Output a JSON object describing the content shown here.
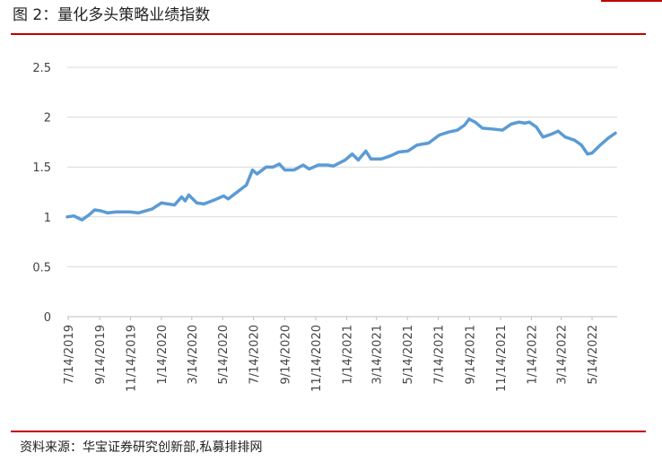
{
  "chart_data": {
    "type": "line",
    "title": "图 2：量化多头策略业绩指数",
    "source": "资料来源：华宝证券研究创新部,私募排排网",
    "x": [
      "2019-07-12",
      "2019-07-25",
      "2019-08-10",
      "2019-08-24",
      "2019-09-04",
      "2019-09-17",
      "2019-09-29",
      "2019-10-17",
      "2019-11-13",
      "2019-11-30",
      "2019-12-27",
      "2020-01-14",
      "2020-02-09",
      "2020-02-23",
      "2020-03-01",
      "2020-03-08",
      "2020-03-24",
      "2020-04-07",
      "2020-04-28",
      "2020-05-16",
      "2020-05-25",
      "2020-06-12",
      "2020-06-30",
      "2020-07-12",
      "2020-07-21",
      "2020-08-08",
      "2020-08-22",
      "2020-09-03",
      "2020-09-14",
      "2020-10-02",
      "2020-10-20",
      "2020-11-01",
      "2020-11-19",
      "2020-12-07",
      "2020-12-19",
      "2021-01-11",
      "2021-01-25",
      "2021-02-06",
      "2021-02-21",
      "2021-03-03",
      "2021-03-23",
      "2021-04-10",
      "2021-04-27",
      "2021-05-15",
      "2021-06-02",
      "2021-06-25",
      "2021-07-16",
      "2021-08-03",
      "2021-08-21",
      "2021-09-04",
      "2021-09-13",
      "2021-09-25",
      "2021-10-09",
      "2021-10-31",
      "2021-11-18",
      "2021-12-05",
      "2021-12-20",
      "2022-01-01",
      "2022-01-10",
      "2022-01-24",
      "2022-02-06",
      "2022-02-23",
      "2022-03-08",
      "2022-03-22",
      "2022-04-09",
      "2022-04-23",
      "2022-05-05",
      "2022-05-14",
      "2022-05-28",
      "2022-06-15",
      "2022-06-29"
    ],
    "series": [
      {
        "color": "#5b9bd5",
        "values": [
          1.0,
          1.01,
          0.97,
          1.02,
          1.07,
          1.06,
          1.04,
          1.05,
          1.05,
          1.04,
          1.08,
          1.14,
          1.12,
          1.2,
          1.16,
          1.22,
          1.14,
          1.13,
          1.17,
          1.21,
          1.18,
          1.25,
          1.32,
          1.47,
          1.43,
          1.5,
          1.5,
          1.53,
          1.47,
          1.47,
          1.52,
          1.48,
          1.52,
          1.52,
          1.51,
          1.57,
          1.63,
          1.57,
          1.66,
          1.58,
          1.58,
          1.61,
          1.65,
          1.66,
          1.72,
          1.74,
          1.82,
          1.85,
          1.87,
          1.92,
          1.98,
          1.95,
          1.89,
          1.88,
          1.87,
          1.93,
          1.95,
          1.94,
          1.95,
          1.9,
          1.8,
          1.83,
          1.86,
          1.8,
          1.77,
          1.72,
          1.63,
          1.64,
          1.71,
          1.79,
          1.84
        ]
      }
    ],
    "xlim": [
      "2019-07-12",
      "2022-06-29"
    ],
    "xticks": [
      {
        "value": "2019-07-14",
        "label": "7/14/2019"
      },
      {
        "value": "2019-09-14",
        "label": "9/14/2019"
      },
      {
        "value": "2019-11-14",
        "label": "11/14/2019"
      },
      {
        "value": "2020-01-14",
        "label": "1/14/2020"
      },
      {
        "value": "2020-03-14",
        "label": "3/14/2020"
      },
      {
        "value": "2020-05-14",
        "label": "5/14/2020"
      },
      {
        "value": "2020-07-14",
        "label": "7/14/2020"
      },
      {
        "value": "2020-09-14",
        "label": "9/14/2020"
      },
      {
        "value": "2020-11-14",
        "label": "11/14/2020"
      },
      {
        "value": "2021-01-14",
        "label": "1/14/2021"
      },
      {
        "value": "2021-03-14",
        "label": "3/14/2021"
      },
      {
        "value": "2021-05-14",
        "label": "5/14/2021"
      },
      {
        "value": "2021-07-14",
        "label": "7/14/2021"
      },
      {
        "value": "2021-09-14",
        "label": "9/14/2021"
      },
      {
        "value": "2021-11-14",
        "label": "11/14/2021"
      },
      {
        "value": "2022-01-14",
        "label": "1/14/2022"
      },
      {
        "value": "2022-03-14",
        "label": "3/14/2022"
      },
      {
        "value": "2022-05-14",
        "label": "5/14/2022"
      }
    ],
    "ylim": [
      0,
      2.5
    ],
    "yticks": [
      0,
      0.5,
      1,
      1.5,
      2,
      2.5
    ],
    "grid": true
  }
}
